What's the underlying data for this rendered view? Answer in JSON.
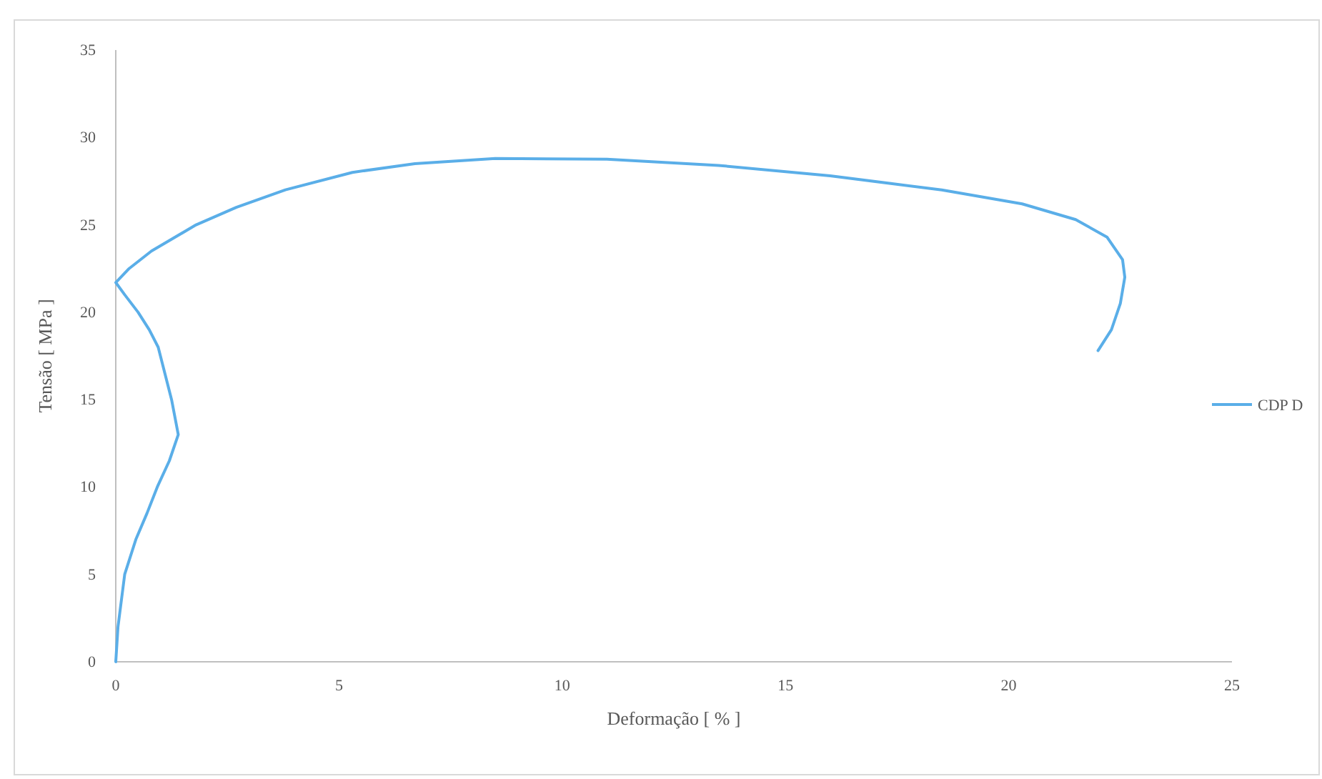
{
  "chart_data": {
    "type": "line",
    "xlabel": "Deformação [ % ]",
    "ylabel": "Tensão [ MPa ]",
    "xlim": [
      0,
      25
    ],
    "xticks": [
      0,
      5,
      10,
      15,
      20,
      25
    ],
    "ylim": [
      0,
      35
    ],
    "yticks": [
      0,
      5,
      10,
      15,
      20,
      25,
      30,
      35
    ],
    "grid": false,
    "legend": "right",
    "marker": "none",
    "line_style": "solid",
    "series": [
      {
        "name": "CDP D",
        "color": "#5aaee8",
        "x": [
          0,
          0.05,
          0.2,
          0.45,
          0.7,
          0.93,
          1.2,
          1.4,
          1.25,
          1.05,
          0.95,
          0.75,
          0.5,
          0.2,
          0,
          0.3,
          0.8,
          1.8,
          2.7,
          3.8,
          5.3,
          6.7,
          8.5,
          11,
          13.5,
          16,
          18.5,
          20.3,
          21.5,
          22.2,
          22.55,
          22.6,
          22.5,
          22.3,
          22
        ],
        "values": [
          0,
          2,
          5,
          7,
          8.5,
          10,
          11.5,
          13,
          15,
          17,
          18,
          19,
          20,
          21,
          21.7,
          22.5,
          23.5,
          25,
          26,
          27,
          28,
          28.5,
          28.8,
          28.75,
          28.4,
          27.8,
          27,
          26.2,
          25.3,
          24.3,
          23,
          22,
          20.5,
          19,
          17.8
        ]
      }
    ]
  }
}
